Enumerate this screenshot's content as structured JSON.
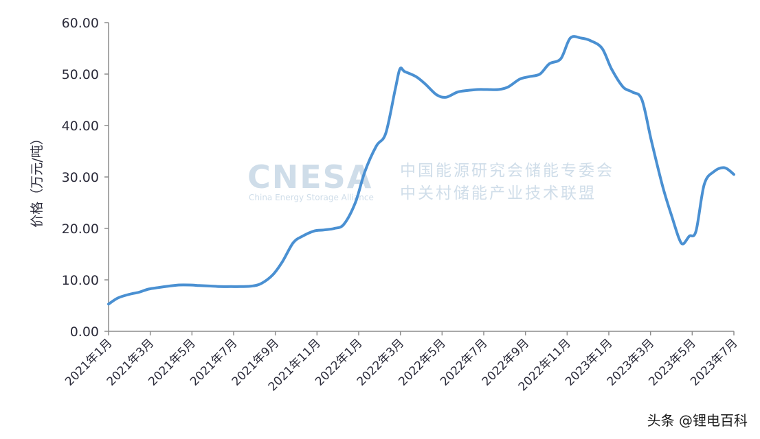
{
  "chart_data": {
    "type": "line",
    "title": "",
    "ylabel": "价格（万元/吨）",
    "xlabel": "",
    "ylim": [
      0,
      60
    ],
    "y_ticks": [
      "0.00",
      "10.00",
      "20.00",
      "30.00",
      "40.00",
      "50.00",
      "60.00"
    ],
    "x_ticks": [
      "2021年1月",
      "2021年3月",
      "2021年5月",
      "2021年7月",
      "2021年9月",
      "2021年11月",
      "2022年1月",
      "2022年3月",
      "2022年5月",
      "2022年7月",
      "2022年9月",
      "2022年11月",
      "2023年1月",
      "2023年3月",
      "2023年5月",
      "2023年7月"
    ],
    "grid": false,
    "line_color": "#4a90d2",
    "series": [
      {
        "name": "",
        "x": [
          "2021-01-01",
          "2021-01-15",
          "2021-02-01",
          "2021-02-15",
          "2021-03-01",
          "2021-03-15",
          "2021-04-01",
          "2021-04-15",
          "2021-05-01",
          "2021-05-15",
          "2021-06-01",
          "2021-06-15",
          "2021-07-01",
          "2021-07-15",
          "2021-08-01",
          "2021-08-15",
          "2021-09-01",
          "2021-09-15",
          "2021-10-01",
          "2021-10-15",
          "2021-11-01",
          "2021-11-15",
          "2021-12-01",
          "2021-12-15",
          "2022-01-01",
          "2022-01-15",
          "2022-02-01",
          "2022-02-15",
          "2022-03-01",
          "2022-03-08",
          "2022-03-15",
          "2022-04-01",
          "2022-04-15",
          "2022-05-01",
          "2022-05-15",
          "2022-06-01",
          "2022-06-15",
          "2022-07-01",
          "2022-07-15",
          "2022-08-01",
          "2022-08-15",
          "2022-09-01",
          "2022-09-15",
          "2022-10-01",
          "2022-10-15",
          "2022-11-01",
          "2022-11-15",
          "2022-12-01",
          "2022-12-15",
          "2023-01-01",
          "2023-01-15",
          "2023-02-01",
          "2023-02-15",
          "2023-03-01",
          "2023-03-15",
          "2023-04-01",
          "2023-04-15",
          "2023-04-25",
          "2023-05-01",
          "2023-05-10",
          "2023-05-20",
          "2023-06-01",
          "2023-06-15",
          "2023-07-01",
          "2023-07-15"
        ],
        "values": [
          5.3,
          6.5,
          7.2,
          7.6,
          8.2,
          8.5,
          8.8,
          9.0,
          9.0,
          8.9,
          8.8,
          8.7,
          8.7,
          8.7,
          8.8,
          9.3,
          11.0,
          13.5,
          17.2,
          18.5,
          19.5,
          19.7,
          20.0,
          20.8,
          25.0,
          31.0,
          36.0,
          38.5,
          47.0,
          51.0,
          50.5,
          49.5,
          48.0,
          46.0,
          45.5,
          46.5,
          46.8,
          47.0,
          47.0,
          47.0,
          47.5,
          49.0,
          49.5,
          50.0,
          52.0,
          53.0,
          57.0,
          57.0,
          56.5,
          55.0,
          51.0,
          47.5,
          46.5,
          45.0,
          37.0,
          28.0,
          22.0,
          18.0,
          17.0,
          18.5,
          19.5,
          28.5,
          31.0,
          31.8,
          30.5
        ]
      }
    ]
  },
  "watermark": {
    "logo": "CNESA",
    "subtitle": "China Energy Storage Alliance",
    "line1": "中国能源研究会储能专委会",
    "line2": "中关村储能产业技术联盟"
  },
  "credit": "头条 @锂电百科"
}
